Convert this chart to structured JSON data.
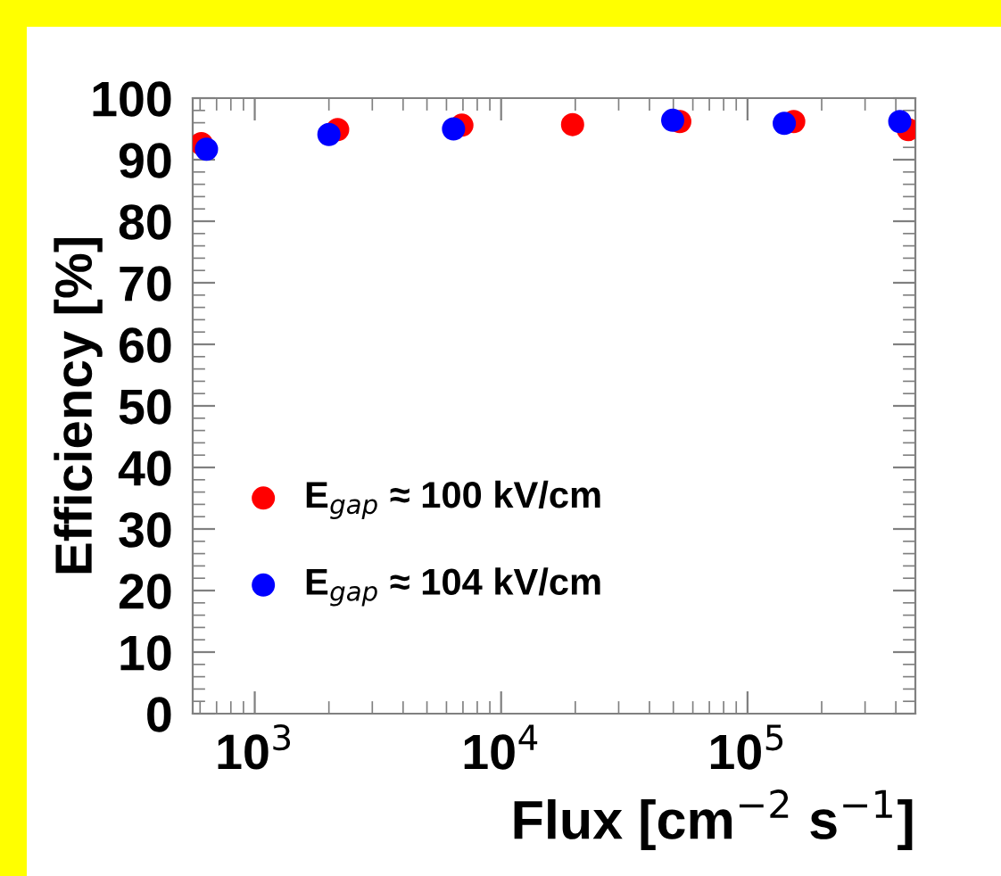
{
  "chart_data": {
    "type": "scatter",
    "xlabel": "Flux [cm$^{−2}$ s$^{−1}$]",
    "ylabel": "Efficiency [%]",
    "log": "x",
    "xlim": [
      560,
      480000
    ],
    "xticks": [
      {
        "value": 1000,
        "label": "10$^{3}$"
      },
      {
        "value": 10000,
        "label": "10$^{4}$"
      },
      {
        "value": 100000,
        "label": "10$^{5}$"
      }
    ],
    "ylim": [
      0,
      100
    ],
    "yticks": [
      0,
      10,
      20,
      30,
      40,
      50,
      60,
      70,
      80,
      90,
      100
    ],
    "grid": false,
    "legend": "bottom left",
    "marker": "circle",
    "series": [
      {
        "name": "E$_{gap}$ ≈ 100 kV/cm",
        "color": "#ff0000",
        "x": [
          607,
          2170,
          6930,
          19500,
          53100,
          154000,
          449000
        ],
        "values": [
          92.6,
          94.9,
          95.6,
          95.7,
          96.2,
          96.2,
          94.9
        ]
      },
      {
        "name": "E$_{gap}$ ≈ 104 kV/cm",
        "color": "#0000ff",
        "x": [
          637,
          2000,
          6410,
          49700,
          141000,
          415000
        ],
        "values": [
          91.7,
          94.1,
          95.0,
          96.4,
          95.9,
          96.2
        ]
      }
    ]
  }
}
